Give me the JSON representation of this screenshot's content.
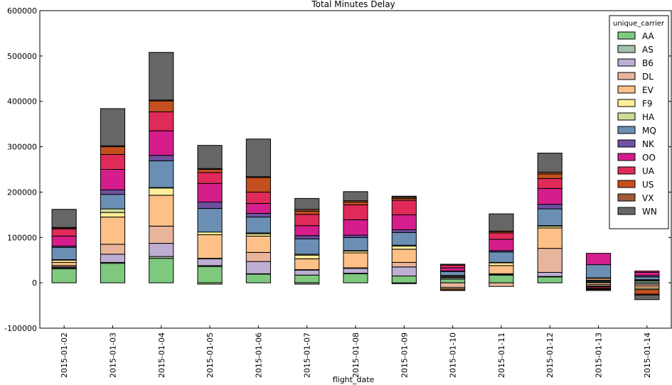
{
  "chart_data": {
    "type": "stacked_bar",
    "title": "Total Minutes Delay",
    "x_label": "flight_date",
    "categories": [
      "2015-01-02",
      "2015-01-03",
      "2015-01-04",
      "2015-01-05",
      "2015-01-06",
      "2015-01-07",
      "2015-01-08",
      "2015-01-09",
      "2015-01-10",
      "2015-01-11",
      "2015-01-12",
      "2015-01-13",
      "2015-01-14"
    ],
    "ylim": [
      -100000,
      600000
    ],
    "yticks": [
      -100000,
      0,
      100000,
      200000,
      300000,
      400000,
      500000,
      600000
    ],
    "legend_title": "unique_carrier",
    "legend_position": "upper right",
    "series": [
      {
        "name": "AA",
        "color": "#7fc97f",
        "values": [
          31000,
          43000,
          54000,
          36000,
          19000,
          17000,
          20000,
          15000,
          8000,
          17000,
          13000,
          2000,
          4000
        ]
      },
      {
        "name": "AS",
        "color": "#a4c2ab",
        "values": [
          2000,
          2000,
          4000,
          2000,
          1000,
          -3000,
          1000,
          -2000,
          3000,
          1000,
          1000,
          2000,
          2000
        ]
      },
      {
        "name": "B6",
        "color": "#beaed4",
        "values": [
          2000,
          18000,
          29000,
          15000,
          27000,
          11000,
          11000,
          20000,
          2000,
          2000,
          9000,
          2000,
          -3000
        ]
      },
      {
        "name": "DL",
        "color": "#e8b49c",
        "values": [
          3000,
          22000,
          38000,
          1000,
          20000,
          1000,
          1000,
          10000,
          -10000,
          -8000,
          53000,
          -4000,
          -4000
        ]
      },
      {
        "name": "EV",
        "color": "#fdc086",
        "values": [
          7000,
          60000,
          68000,
          52000,
          36000,
          24000,
          33000,
          29000,
          2000,
          18000,
          45000,
          4000,
          -5000
        ]
      },
      {
        "name": "F9",
        "color": "#ffee99",
        "values": [
          5000,
          10000,
          16000,
          6000,
          5000,
          8000,
          4000,
          7000,
          -3000,
          6000,
          4000,
          -3000,
          -3000
        ]
      },
      {
        "name": "HA",
        "color": "#ccdd99",
        "values": [
          1000,
          8000,
          1000,
          -3000,
          2000,
          2000,
          1000,
          2000,
          1000,
          1000,
          1000,
          1000,
          1000
        ]
      },
      {
        "name": "MQ",
        "color": "#6b8fb4",
        "values": [
          27000,
          32000,
          59000,
          52000,
          35000,
          34000,
          29000,
          28000,
          9000,
          23000,
          37000,
          29000,
          6000
        ]
      },
      {
        "name": "NK",
        "color": "#7050a0",
        "values": [
          3000,
          10000,
          12000,
          14000,
          8000,
          7000,
          5000,
          6000,
          1000,
          3000,
          10000,
          -2000,
          3000
        ]
      },
      {
        "name": "OO",
        "color": "#d51e8b",
        "values": [
          22000,
          45000,
          54000,
          41000,
          22000,
          22000,
          34000,
          33000,
          7000,
          25000,
          35000,
          25000,
          7000
        ]
      },
      {
        "name": "UA",
        "color": "#e02a59",
        "values": [
          16000,
          33000,
          42000,
          24000,
          25000,
          25000,
          33000,
          32000,
          6000,
          14000,
          22000,
          -3000,
          3000
        ]
      },
      {
        "name": "US",
        "color": "#c4501f",
        "values": [
          2000,
          17000,
          24000,
          7000,
          32000,
          7000,
          6000,
          4000,
          -3000,
          3000,
          10000,
          -2000,
          -10000
        ]
      },
      {
        "name": "VX",
        "color": "#9e5a36",
        "values": [
          1000,
          2000,
          2000,
          2000,
          2000,
          4000,
          3000,
          3000,
          -1000,
          1000,
          4000,
          -1000,
          -2000
        ]
      },
      {
        "name": "WN",
        "color": "#666666",
        "values": [
          40000,
          82000,
          105000,
          51000,
          83000,
          24000,
          20000,
          2000,
          2000,
          38000,
          42000,
          -2000,
          -10000
        ]
      }
    ]
  }
}
